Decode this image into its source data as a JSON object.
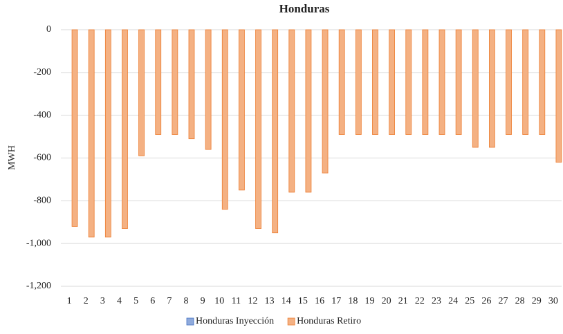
{
  "chart_data": {
    "type": "bar",
    "title": "Honduras",
    "y_label": "MWH",
    "categories": [
      "1",
      "2",
      "3",
      "4",
      "5",
      "6",
      "7",
      "8",
      "9",
      "10",
      "11",
      "12",
      "13",
      "14",
      "15",
      "16",
      "17",
      "18",
      "19",
      "20",
      "21",
      "22",
      "23",
      "24",
      "25",
      "26",
      "27",
      "28",
      "29",
      "30"
    ],
    "series": [
      {
        "name": "Honduras Inyección",
        "color": "#8faadc",
        "values": [
          0,
          0,
          0,
          0,
          0,
          0,
          0,
          0,
          0,
          0,
          0,
          0,
          0,
          0,
          0,
          0,
          0,
          0,
          0,
          0,
          0,
          0,
          0,
          0,
          0,
          0,
          0,
          0,
          0,
          0
        ]
      },
      {
        "name": "Honduras Retiro",
        "color": "#f4b183",
        "values": [
          -920,
          -970,
          -970,
          -930,
          -590,
          -490,
          -490,
          -510,
          -560,
          -840,
          -750,
          -930,
          -950,
          -760,
          -760,
          -670,
          -490,
          -490,
          -490,
          -490,
          -490,
          -490,
          -490,
          -490,
          -550,
          -550,
          -490,
          -490,
          -490,
          -620
        ]
      }
    ],
    "ylim": [
      -1200,
      0
    ],
    "yticks": [
      0,
      -200,
      -400,
      -600,
      -800,
      {
        "value": -1000,
        "label": "-1,000"
      },
      {
        "value": -1200,
        "label": "-1,200"
      }
    ],
    "grid": true,
    "legend": "bottom"
  }
}
